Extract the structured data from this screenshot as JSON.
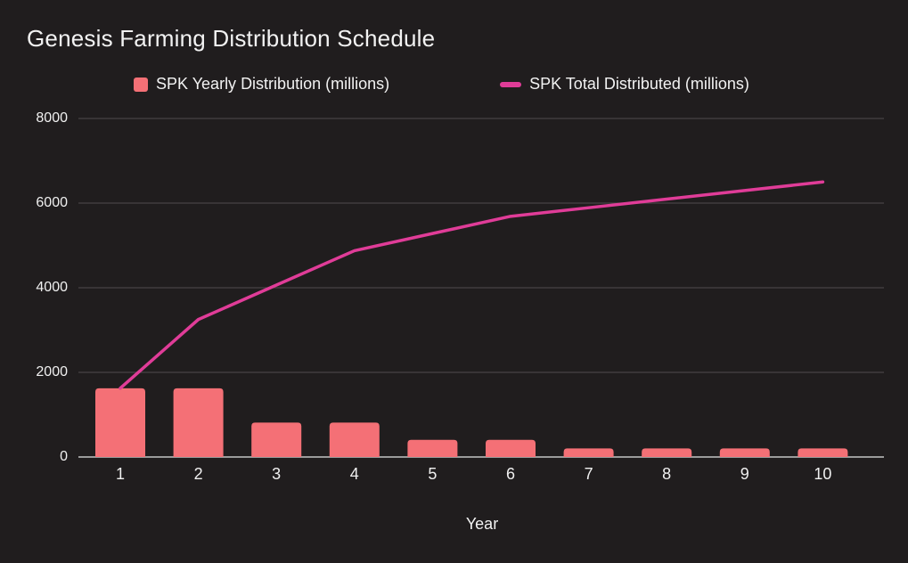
{
  "chart_data": {
    "type": "bar",
    "title": "Genesis Farming Distribution Schedule",
    "xlabel": "Year",
    "ylabel": "",
    "categories": [
      "1",
      "2",
      "3",
      "4",
      "5",
      "6",
      "7",
      "8",
      "9",
      "10"
    ],
    "y_ticks": [
      "0",
      "2000",
      "4000",
      "6000",
      "8000"
    ],
    "ylim": [
      0,
      8000
    ],
    "grid": true,
    "legend_position": "top",
    "series": [
      {
        "name": "SPK Yearly Distribution (millions)",
        "type": "bar",
        "color": "#f47076",
        "values": [
          1625,
          1625,
          812.5,
          812.5,
          406.25,
          406.25,
          203.125,
          203.125,
          203.125,
          203.125
        ]
      },
      {
        "name": "SPK Total Distributed (millions)",
        "type": "line",
        "color": "#e03c98",
        "values": [
          1625,
          3250,
          4062.5,
          4875,
          5281.25,
          5687.5,
          5890.625,
          6093.75,
          6296.875,
          6500
        ]
      }
    ],
    "colors": {
      "background": "#201d1e",
      "text": "#f2f2f2",
      "gridline": "#474344",
      "axis_line": "#9b9b9b"
    }
  }
}
